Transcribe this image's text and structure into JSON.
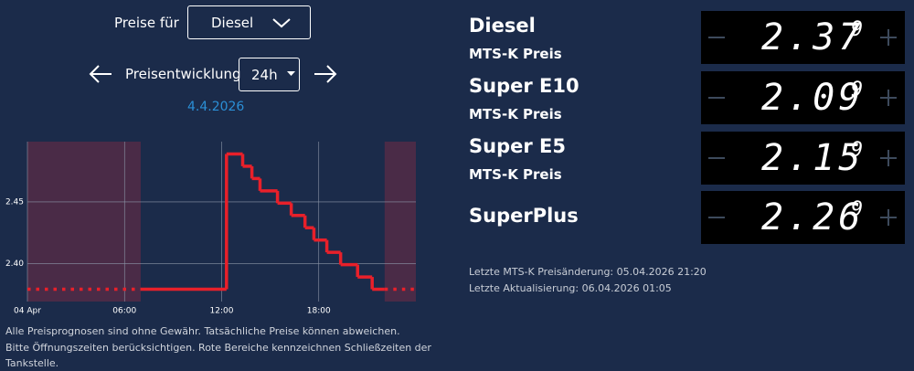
{
  "header": {
    "label": "Preise für",
    "fuel_select": "Diesel",
    "title": "Preisentwicklung",
    "range_select": "24h",
    "date": "4.4.2026"
  },
  "chart_data": {
    "type": "line",
    "step": true,
    "x": [
      0,
      12.3,
      13.3,
      13.87,
      14.37,
      15.45,
      16.3,
      17.15,
      17.7,
      18.5,
      19.35,
      20.4,
      21.3
    ],
    "values": [
      2.379,
      2.489,
      2.479,
      2.469,
      2.459,
      2.449,
      2.439,
      2.429,
      2.419,
      2.409,
      2.399,
      2.389,
      2.379
    ],
    "color": "#e8202a",
    "xlim": [
      0,
      24
    ],
    "xticks": [
      {
        "value": 0,
        "label": "04 Apr"
      },
      {
        "value": 6,
        "label": "06:00"
      },
      {
        "value": 12,
        "label": "12:00"
      },
      {
        "value": 18,
        "label": "18:00"
      }
    ],
    "ylim": [
      2.369,
      2.499
    ],
    "yticks": [
      {
        "value": 2.4,
        "label": "2.40"
      },
      {
        "value": 2.45,
        "label": "2.45"
      }
    ],
    "grid": true,
    "closed_ranges": [
      [
        0,
        7
      ],
      [
        22.07,
        24
      ]
    ],
    "closed_color": "#4a2b47"
  },
  "notes": [
    "Alle Preisprognosen sind ohne Gewähr. Tatsächliche Preise können abweichen.",
    "Bitte Öffnungszeiten berücksichtigen. Rote Bereiche kennzeichnen Schließzeiten der",
    "Tankstelle."
  ],
  "fuels": [
    {
      "name": "Diesel",
      "label": "MTS-K Preis",
      "price": "2.37",
      "price_tenth": "9"
    },
    {
      "name": "Super E10",
      "label": "MTS-K Preis",
      "price": "2.09",
      "price_tenth": "9"
    },
    {
      "name": "Super E5",
      "label": "MTS-K Preis",
      "price": "2.15",
      "price_tenth": "9"
    },
    {
      "name": "SuperPlus",
      "price": "2.26",
      "price_tenth": "9"
    }
  ],
  "info": [
    "Letzte MTS-K Preisänderung: 05.04.2026 21:20",
    "Letzte Aktualisierung: 06.04.2026 01:05"
  ]
}
